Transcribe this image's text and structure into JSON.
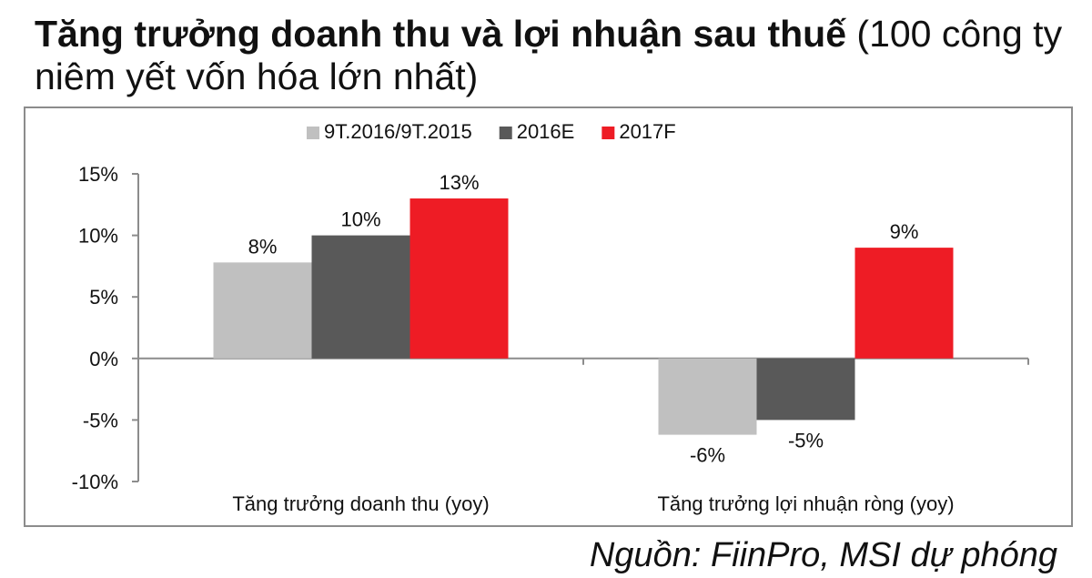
{
  "header": {
    "title_bold": "Tăng trưởng doanh thu và lợi nhuận sau thuế",
    "title_rest": " (100 công ty niêm yết vốn hóa lớn nhất)"
  },
  "source": "Nguồn: FiinPro, MSI dự phóng",
  "chart_data": {
    "type": "bar",
    "categories": [
      "Tăng trưởng doanh thu (yoy)",
      "Tăng trưởng lợi nhuận ròng (yoy)"
    ],
    "series": [
      {
        "name": "9T.2016/9T.2015",
        "color": "#c0c0c0",
        "values": [
          7.8,
          -6.2
        ],
        "labels": [
          "8%",
          "-6%"
        ]
      },
      {
        "name": "2016E",
        "color": "#595959",
        "values": [
          10.0,
          -5.0
        ],
        "labels": [
          "10%",
          "-5%"
        ]
      },
      {
        "name": "2017F",
        "color": "#ee1c25",
        "values": [
          13.0,
          9.0
        ],
        "labels": [
          "13%",
          "9%"
        ]
      }
    ],
    "ylim": [
      -10,
      15
    ],
    "yticks": [
      15,
      10,
      5,
      0,
      -5,
      -10
    ],
    "ytick_labels": [
      "15%",
      "10%",
      "5%",
      "0%",
      "-5%",
      "-10%"
    ],
    "legend_position": "top",
    "grid": false
  }
}
